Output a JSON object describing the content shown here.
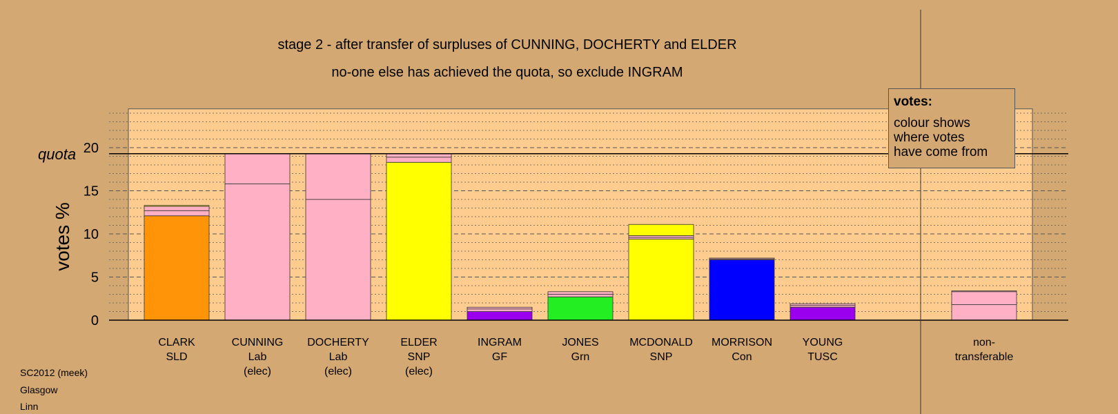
{
  "chart_data": {
    "type": "bar",
    "stacked": true,
    "title": "stage 2 - after transfer of surpluses of CUNNING, DOCHERTY and ELDER",
    "subtitle": "no-one else has achieved the quota, so exclude INGRAM",
    "ylabel": "votes %",
    "quota_label": "quota",
    "quota": 19.3,
    "ylim": [
      0,
      24.5
    ],
    "yticks": [
      0,
      5,
      10,
      15,
      20
    ],
    "categories": [
      {
        "lines": [
          "CLARK",
          "SLD"
        ]
      },
      {
        "lines": [
          "CUNNING",
          "Lab",
          "(elec)"
        ]
      },
      {
        "lines": [
          "DOCHERTY",
          "Lab",
          "(elec)"
        ]
      },
      {
        "lines": [
          "ELDER",
          "SNP",
          "(elec)"
        ]
      },
      {
        "lines": [
          "INGRAM",
          "GF"
        ]
      },
      {
        "lines": [
          "JONES",
          "Grn"
        ]
      },
      {
        "lines": [
          "MCDONALD",
          "SNP"
        ]
      },
      {
        "lines": [
          "MORRISON",
          "Con"
        ]
      },
      {
        "lines": [
          "YOUNG",
          "TUSC"
        ]
      },
      {
        "lines": []
      },
      {
        "lines": [
          "non-",
          "transferable"
        ]
      }
    ],
    "bars": [
      [
        {
          "value": 12.1,
          "color": "#ff9408"
        },
        {
          "value": 0.6,
          "color": "#ffb0c4"
        },
        {
          "value": 0.5,
          "color": "#ffb0c4"
        },
        {
          "value": 0.1,
          "color": "#ffff00"
        }
      ],
      [
        {
          "value": 15.8,
          "color": "#ffb0c4"
        },
        {
          "value": 3.5,
          "color": "#ffb0c4"
        }
      ],
      [
        {
          "value": 14.0,
          "color": "#ffb0c4"
        },
        {
          "value": 5.3,
          "color": "#ffb0c4"
        }
      ],
      [
        {
          "value": 18.3,
          "color": "#ffff00"
        },
        {
          "value": 0.6,
          "color": "#ffb0c4"
        },
        {
          "value": 0.4,
          "color": "#ffb0c4"
        }
      ],
      [
        {
          "value": 1.0,
          "color": "#9b00ee"
        },
        {
          "value": 0.3,
          "color": "#ffb0c4"
        },
        {
          "value": 0.2,
          "color": "#ffb0c4"
        }
      ],
      [
        {
          "value": 2.7,
          "color": "#22ee22"
        },
        {
          "value": 0.3,
          "color": "#ffb0c4"
        },
        {
          "value": 0.3,
          "color": "#ffb0c4"
        }
      ],
      [
        {
          "value": 9.4,
          "color": "#ffff00"
        },
        {
          "value": 0.2,
          "color": "#ffb0c4"
        },
        {
          "value": 0.2,
          "color": "#ffb0c4"
        },
        {
          "value": 1.3,
          "color": "#ffff00"
        }
      ],
      [
        {
          "value": 7.0,
          "color": "#0000ff"
        },
        {
          "value": 0.1,
          "color": "#ffb0c4"
        },
        {
          "value": 0.1,
          "color": "#ffb0c4"
        }
      ],
      [
        {
          "value": 1.5,
          "color": "#9b00ee"
        },
        {
          "value": 0.2,
          "color": "#ffb0c4"
        },
        {
          "value": 0.2,
          "color": "#ffb0c4"
        }
      ],
      [],
      [
        {
          "value": 1.8,
          "color": "#ffb0c4"
        },
        {
          "value": 1.5,
          "color": "#ffb0c4"
        },
        {
          "value": 0.1,
          "color": "#ffb0c4"
        }
      ]
    ],
    "grid": true,
    "plot_background": "#ffcc8f",
    "page_background": "#d4a872"
  },
  "legend": {
    "title": "votes:",
    "lines": [
      "colour shows",
      "where votes",
      "have come from"
    ]
  },
  "footer": [
    "SC2012 (meek)",
    "Glasgow",
    "Linn"
  ]
}
